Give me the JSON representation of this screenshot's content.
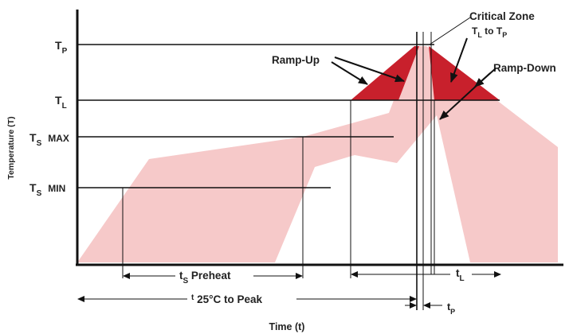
{
  "colors": {
    "process_window": "#f6c9c9",
    "critical_zone": "#c8202c",
    "lines": "#111111"
  },
  "labels": {
    "y_axis": "Temperature (T)",
    "x_axis": "Time (t)",
    "tp_level_main": "T",
    "tp_level_sub": "P",
    "tl_level_main": "T",
    "tl_level_sub": "L",
    "ts_max_main": "T",
    "ts_max_sub": "S",
    "ts_max_text": "MAX",
    "ts_min_main": "T",
    "ts_min_sub": "S",
    "ts_min_text": "MIN",
    "critical_zone": "Critical Zone",
    "critical_range_t1": "T",
    "critical_range_s1": "L",
    "critical_range_to": " to ",
    "critical_range_t2": "T",
    "critical_range_s2": "P",
    "ramp_up": "Ramp-Up",
    "ramp_down": "Ramp-Down",
    "preheat_main": "t",
    "preheat_sub": "S",
    "preheat_text": " Preheat",
    "peak_time_main": "t",
    "peak_time_text": " 25°C to Peak",
    "tl_time_main": "t",
    "tl_time_sub": "L",
    "tp_time_main": "t",
    "tp_time_sub": "P"
  }
}
